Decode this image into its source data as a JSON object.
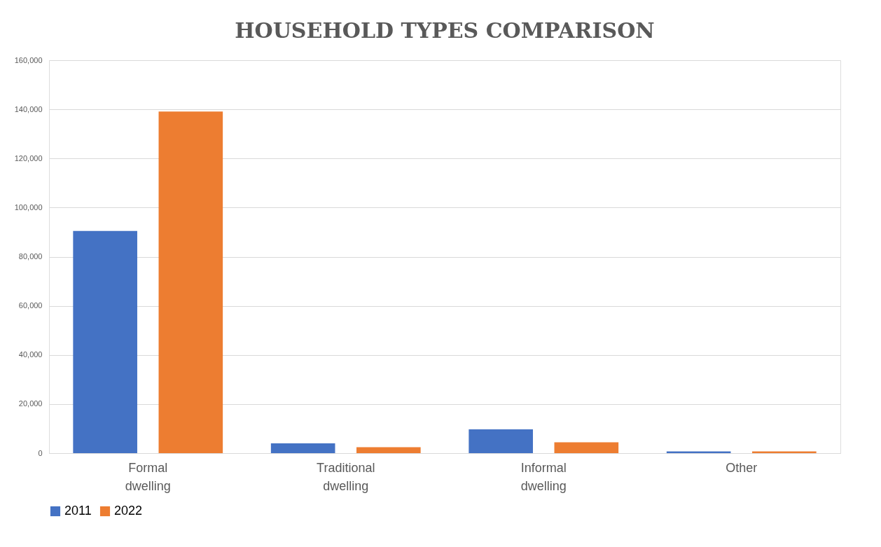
{
  "chart_data": {
    "type": "bar",
    "title": "HOUSEHOLD TYPES COMPARISON",
    "categories": [
      "Formal dwelling",
      "Traditional dwelling",
      "Informal dwelling",
      "Other"
    ],
    "series": [
      {
        "name": "2011",
        "color": "#4472c4",
        "values": [
          90500,
          4000,
          9700,
          700
        ]
      },
      {
        "name": "2022",
        "color": "#ed7d31",
        "values": [
          139100,
          2400,
          4400,
          700
        ]
      }
    ],
    "ylim": [
      0,
      160000
    ],
    "yticks": [
      {
        "value": 0,
        "label": "0"
      },
      {
        "value": 20000,
        "label": "20,000"
      },
      {
        "value": 40000,
        "label": "40,000"
      },
      {
        "value": 60000,
        "label": "60,000"
      },
      {
        "value": 80000,
        "label": "80,000"
      },
      {
        "value": 100000,
        "label": "100,000"
      },
      {
        "value": 120000,
        "label": "120,000"
      },
      {
        "value": 140000,
        "label": "140,000"
      },
      {
        "value": 160000,
        "label": "160,000"
      }
    ],
    "grid": "y",
    "legend": "bottom"
  }
}
